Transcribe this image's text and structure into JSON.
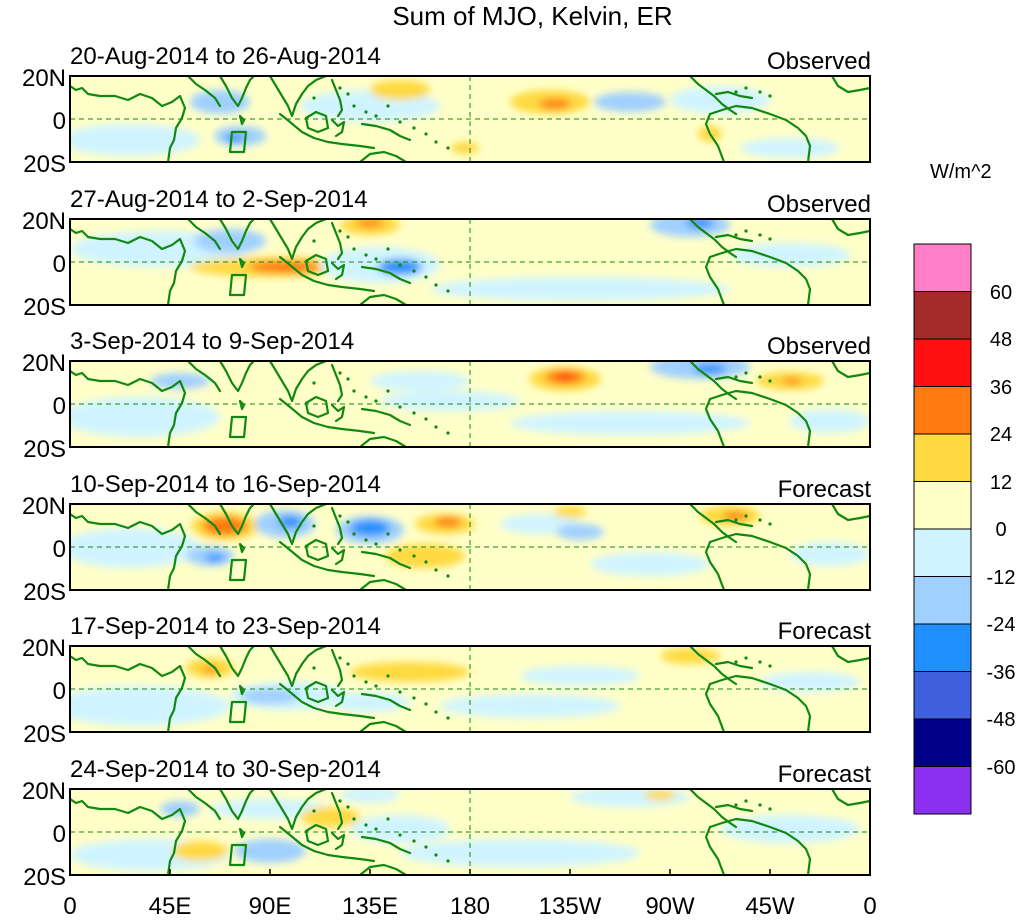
{
  "title": "Sum of MJO, Kelvin, ER",
  "units": "W/m^2",
  "panels": [
    {
      "dates": "20-Aug-2014 to 26-Aug-2014",
      "kind": "Observed"
    },
    {
      "dates": "27-Aug-2014 to 2-Sep-2014",
      "kind": "Observed"
    },
    {
      "dates": "3-Sep-2014 to 9-Sep-2014",
      "kind": "Observed"
    },
    {
      "dates": "10-Sep-2014 to 16-Sep-2014",
      "kind": "Forecast"
    },
    {
      "dates": "17-Sep-2014 to 23-Sep-2014",
      "kind": "Forecast"
    },
    {
      "dates": "24-Sep-2014 to 30-Sep-2014",
      "kind": "Forecast"
    }
  ],
  "lat_labels": [
    "20N",
    "0",
    "20S"
  ],
  "lon_labels": [
    "0",
    "45E",
    "90E",
    "135E",
    "180",
    "135W",
    "90W",
    "45W",
    "0"
  ],
  "colorbar": {
    "labels": [
      "60",
      "48",
      "36",
      "24",
      "12",
      "0",
      "-12",
      "-24",
      "-36",
      "-48",
      "-60"
    ],
    "colors": [
      "#ff7fc8",
      "#a52a2a",
      "#ff1010",
      "#ff7a10",
      "#ffd940",
      "#ffffc8",
      "#d0f4ff",
      "#a0d0ff",
      "#2090ff",
      "#4060e0",
      "#00008b",
      "#8c30f0"
    ]
  },
  "colors": {
    "land_outline": "#118811",
    "reference_line": "#118811",
    "zero_band": "#ffffc8"
  }
}
